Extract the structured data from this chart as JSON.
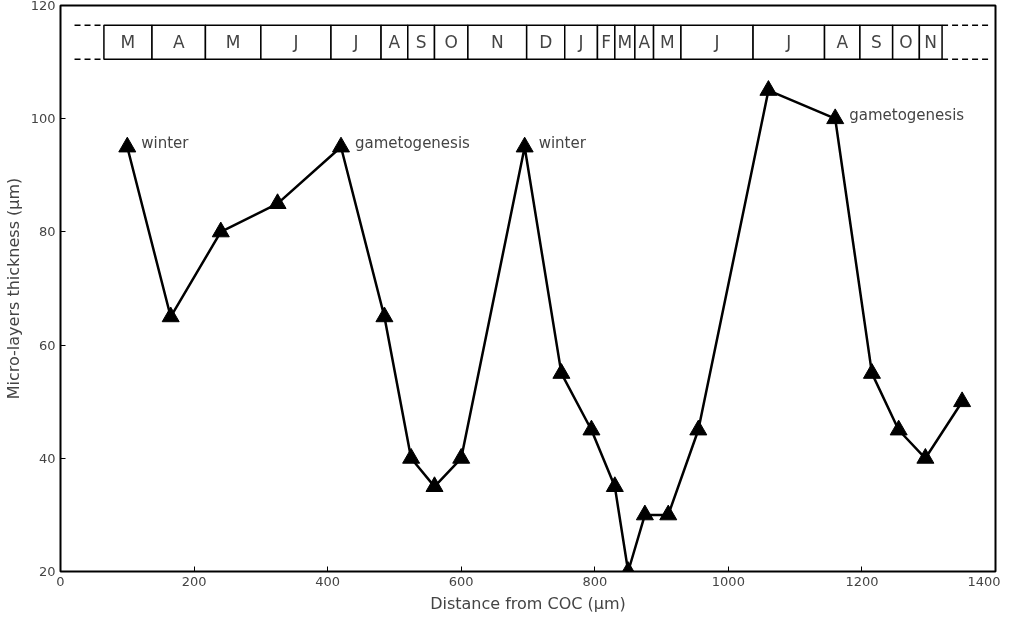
{
  "chart_data": {
    "type": "line",
    "xlabel": "Distance from COC (µm)",
    "ylabel": "Micro-layers thickness (µm)",
    "x": [
      100,
      165,
      240,
      325,
      420,
      485,
      525,
      560,
      600,
      695,
      750,
      795,
      830,
      850,
      875,
      910,
      955,
      1060,
      1160,
      1215,
      1255,
      1295,
      1350
    ],
    "series": [
      {
        "color": "#000000",
        "values": [
          95,
          65,
          80,
          85,
          95,
          65,
          40,
          35,
          40,
          95,
          55,
          45,
          35,
          20,
          30,
          30,
          45,
          105,
          100,
          55,
          45,
          40,
          50
        ]
      }
    ],
    "xlim": [
      0,
      1400
    ],
    "ylim": [
      20,
      120
    ],
    "xticks": [
      0,
      200,
      400,
      600,
      800,
      1000,
      1200,
      1400
    ],
    "yticks": [
      20,
      40,
      60,
      80,
      100,
      120
    ],
    "grid": false,
    "marker": "triangle",
    "line_style": "solid",
    "annotations": [
      {
        "text": "winter",
        "x": 100,
        "y": 95
      },
      {
        "text": "gametogenesis",
        "x": 420,
        "y": 95
      },
      {
        "text": "winter",
        "x": 695,
        "y": 95
      },
      {
        "text": "gametogenesis",
        "x": 1160,
        "y": 100
      }
    ],
    "bands": [
      {
        "axis": "x",
        "from": 65,
        "to": 137,
        "label": "M"
      },
      {
        "axis": "x",
        "from": 137,
        "to": 217,
        "label": "A"
      },
      {
        "axis": "x",
        "from": 217,
        "to": 300,
        "label": "M"
      },
      {
        "axis": "x",
        "from": 300,
        "to": 405,
        "label": "J"
      },
      {
        "axis": "x",
        "from": 405,
        "to": 480,
        "label": "J"
      },
      {
        "axis": "x",
        "from": 480,
        "to": 520,
        "label": "A"
      },
      {
        "axis": "x",
        "from": 520,
        "to": 560,
        "label": "S"
      },
      {
        "axis": "x",
        "from": 560,
        "to": 610,
        "label": "O"
      },
      {
        "axis": "x",
        "from": 610,
        "to": 698,
        "label": "N"
      },
      {
        "axis": "x",
        "from": 698,
        "to": 755,
        "label": "D"
      },
      {
        "axis": "x",
        "from": 755,
        "to": 804,
        "label": "J"
      },
      {
        "axis": "x",
        "from": 804,
        "to": 830,
        "label": "F"
      },
      {
        "axis": "x",
        "from": 830,
        "to": 860,
        "label": "M"
      },
      {
        "axis": "x",
        "from": 860,
        "to": 888,
        "label": "A"
      },
      {
        "axis": "x",
        "from": 888,
        "to": 929,
        "label": "M"
      },
      {
        "axis": "x",
        "from": 929,
        "to": 1037,
        "label": "J"
      },
      {
        "axis": "x",
        "from": 1037,
        "to": 1144,
        "label": "J"
      },
      {
        "axis": "x",
        "from": 1144,
        "to": 1197,
        "label": "A"
      },
      {
        "axis": "x",
        "from": 1197,
        "to": 1246,
        "label": "S"
      },
      {
        "axis": "x",
        "from": 1246,
        "to": 1286,
        "label": "O"
      },
      {
        "axis": "x",
        "from": 1286,
        "to": 1320,
        "label": "N"
      }
    ]
  }
}
